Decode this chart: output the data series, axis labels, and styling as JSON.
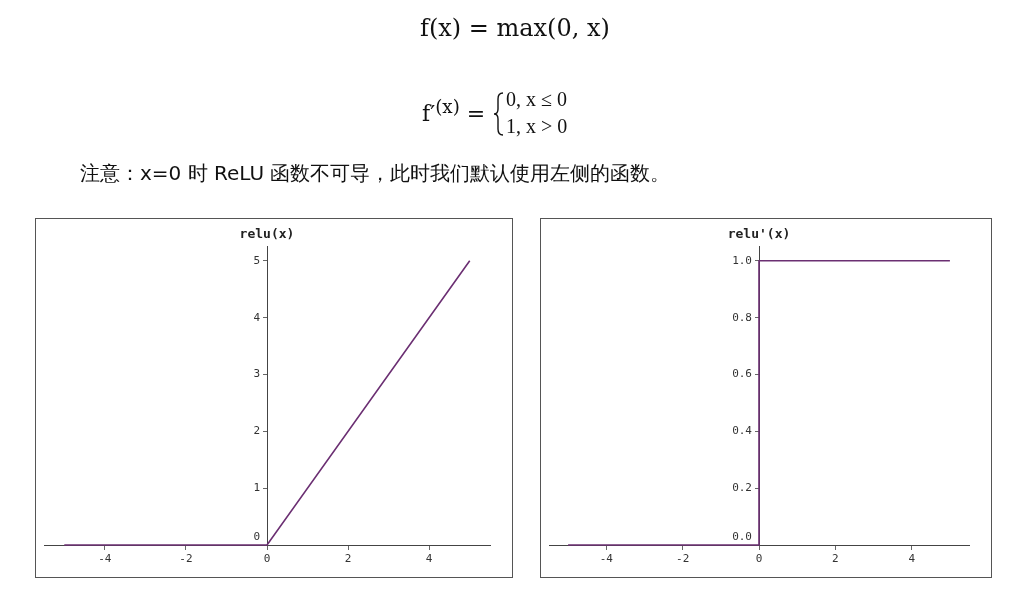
{
  "chart_data": [
    {
      "type": "line",
      "title": "relu(x)",
      "annotations": [
        "f(x) = max(0, x)",
        "f′$^{(x)}$ =",
        "0, x ≤ 0",
        "1, x > 0",
        "注意：x=0 时 ReLU 函数不可导，此时我们默认使用左侧的函数。"
      ],
      "x": [
        -5,
        0,
        5
      ],
      "series": [
        {
          "color": "#6b2f72",
          "values": [
            0,
            0,
            5
          ]
        }
      ],
      "xlim": [
        -5.5,
        5.5
      ],
      "xticks": [
        -4,
        -2,
        0,
        2,
        4
      ],
      "ylim": [
        0,
        5.25
      ],
      "yticks": [
        0,
        1,
        2,
        3,
        4,
        5
      ],
      "grid": false,
      "legend": false,
      "marker": "none",
      "line_style": "solid"
    },
    {
      "type": "line",
      "title": "relu'(x)",
      "x": [
        -5,
        0,
        0,
        5
      ],
      "series": [
        {
          "color": "#6b2f72",
          "values": [
            0,
            0,
            1,
            1
          ]
        }
      ],
      "xlim": [
        -5.5,
        5.5
      ],
      "xticks": [
        -4,
        -2,
        0,
        2,
        4
      ],
      "ylim": [
        0,
        1.05
      ],
      "yticks": [
        {
          "value": 0,
          "label": "0.0"
        },
        {
          "value": 0.2,
          "label": "0.2"
        },
        {
          "value": 0.4,
          "label": "0.4"
        },
        {
          "value": 0.6,
          "label": "0.6"
        },
        {
          "value": 0.8,
          "label": "0.8"
        },
        {
          "value": 1,
          "label": "1.0"
        }
      ],
      "grid": false,
      "legend": false,
      "marker": "none",
      "line_style": "solid"
    }
  ]
}
